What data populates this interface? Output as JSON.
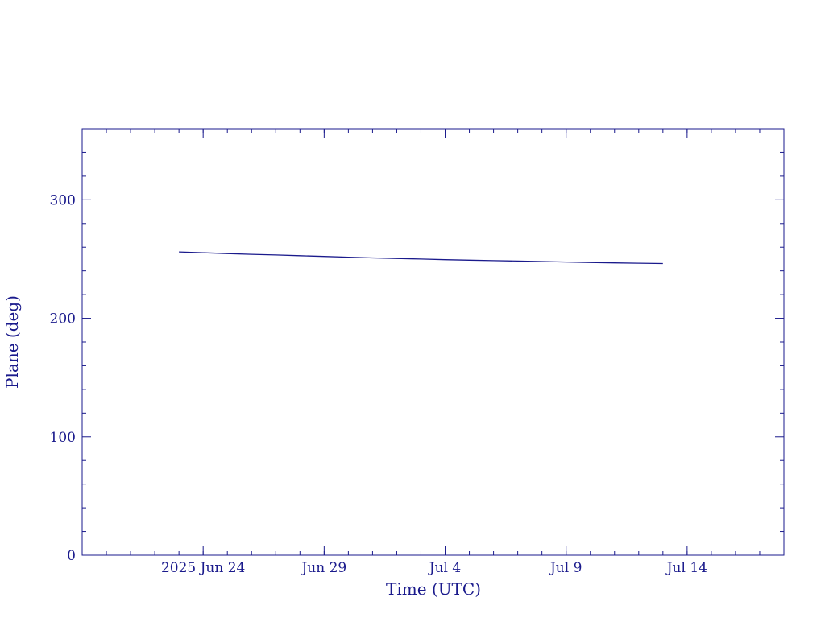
{
  "chart_data": {
    "type": "line",
    "title": "",
    "xlabel": "Time (UTC)",
    "ylabel": "Plane (deg)",
    "xlim": [
      "2025-06-19",
      "2025-07-18"
    ],
    "ylim": [
      0,
      360
    ],
    "grid": false,
    "colors": {
      "axis": "#1a1a8c",
      "line": "#1a1a8c"
    },
    "x_ticks": [
      {
        "date": "2025-06-24",
        "label": "2025 Jun 24"
      },
      {
        "date": "2025-06-29",
        "label": "Jun 29"
      },
      {
        "date": "2025-07-04",
        "label": "Jul  4"
      },
      {
        "date": "2025-07-09",
        "label": "Jul  9"
      },
      {
        "date": "2025-07-14",
        "label": "Jul 14"
      }
    ],
    "y_ticks": [
      {
        "value": 0,
        "label": "0"
      },
      {
        "value": 100,
        "label": "100"
      },
      {
        "value": 200,
        "label": "200"
      },
      {
        "value": 300,
        "label": "300"
      }
    ],
    "series": [
      {
        "values": [
          {
            "x": "2025-06-23",
            "y": 256.0
          },
          {
            "x": "2025-06-24",
            "y": 255.3
          },
          {
            "x": "2025-06-25",
            "y": 254.6
          },
          {
            "x": "2025-06-26",
            "y": 254.0
          },
          {
            "x": "2025-06-27",
            "y": 253.4
          },
          {
            "x": "2025-06-28",
            "y": 252.8
          },
          {
            "x": "2025-06-29",
            "y": 252.2
          },
          {
            "x": "2025-06-30",
            "y": 251.6
          },
          {
            "x": "2025-07-01",
            "y": 251.0
          },
          {
            "x": "2025-07-02",
            "y": 250.5
          },
          {
            "x": "2025-07-03",
            "y": 250.0
          },
          {
            "x": "2025-07-04",
            "y": 249.5
          },
          {
            "x": "2025-07-05",
            "y": 249.1
          },
          {
            "x": "2025-07-06",
            "y": 248.7
          },
          {
            "x": "2025-07-07",
            "y": 248.3
          },
          {
            "x": "2025-07-08",
            "y": 247.9
          },
          {
            "x": "2025-07-09",
            "y": 247.5
          },
          {
            "x": "2025-07-10",
            "y": 247.1
          },
          {
            "x": "2025-07-11",
            "y": 246.8
          },
          {
            "x": "2025-07-12",
            "y": 246.5
          },
          {
            "x": "2025-07-13",
            "y": 246.2
          }
        ]
      }
    ]
  }
}
